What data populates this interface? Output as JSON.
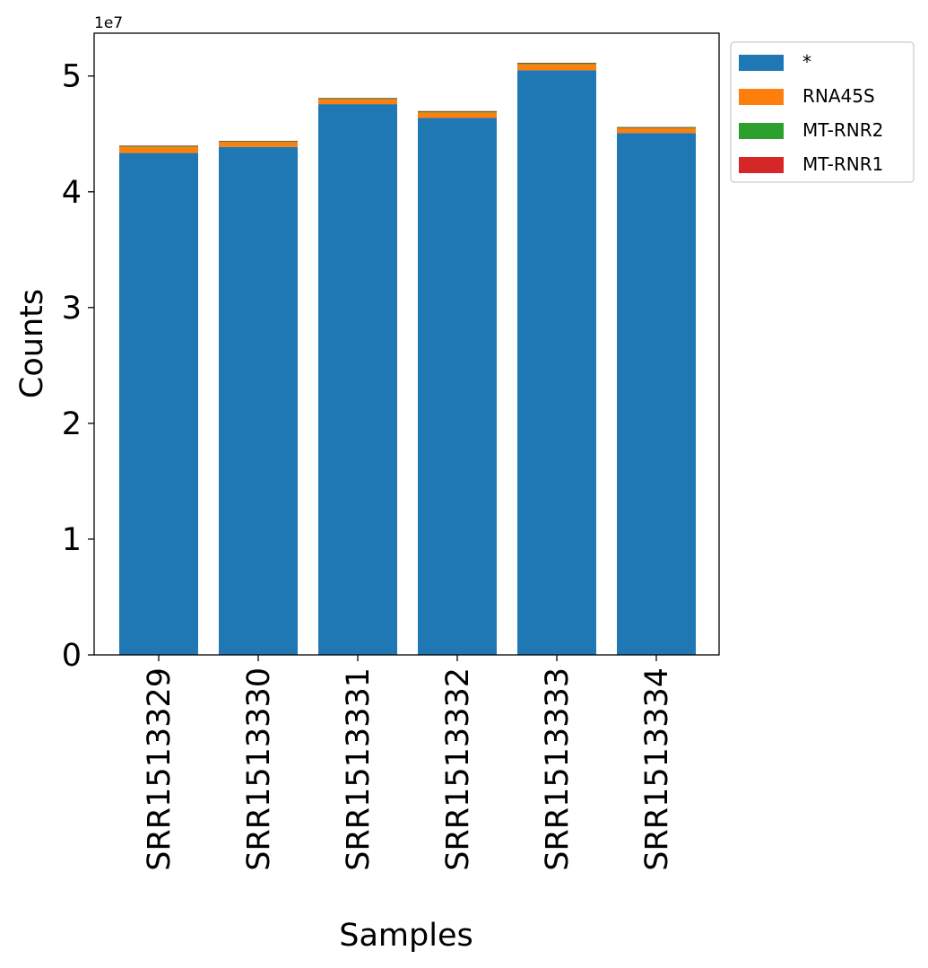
{
  "chart_data": {
    "type": "bar",
    "stacked": true,
    "title": "",
    "xlabel": "Samples",
    "ylabel": "Counts",
    "y_offset_label": "1e7",
    "y_scale": 10000000,
    "ylim": [
      0,
      53700000
    ],
    "yticks": [
      0,
      10000000,
      20000000,
      30000000,
      40000000,
      50000000
    ],
    "ytick_labels": [
      "0",
      "1",
      "2",
      "3",
      "4",
      "5"
    ],
    "categories": [
      "SRR1513329",
      "SRR1513330",
      "SRR1513331",
      "SRR1513332",
      "SRR1513333",
      "SRR1513334"
    ],
    "series": [
      {
        "name": "*",
        "color": "#1f77b4",
        "values": [
          43350000,
          43880000,
          47570000,
          46380000,
          50500000,
          45080000
        ]
      },
      {
        "name": "RNA45S",
        "color": "#ff7f0e",
        "values": [
          530000,
          420000,
          420000,
          470000,
          520000,
          410000
        ]
      },
      {
        "name": "MT-RNR2",
        "color": "#2ca02c",
        "values": [
          100000,
          90000,
          100000,
          110000,
          110000,
          90000
        ]
      },
      {
        "name": "MT-RNR1",
        "color": "#d62728",
        "values": [
          15000,
          12000,
          14000,
          15000,
          15000,
          12000
        ]
      }
    ],
    "grid": false,
    "legend_position": "outside top-right"
  }
}
